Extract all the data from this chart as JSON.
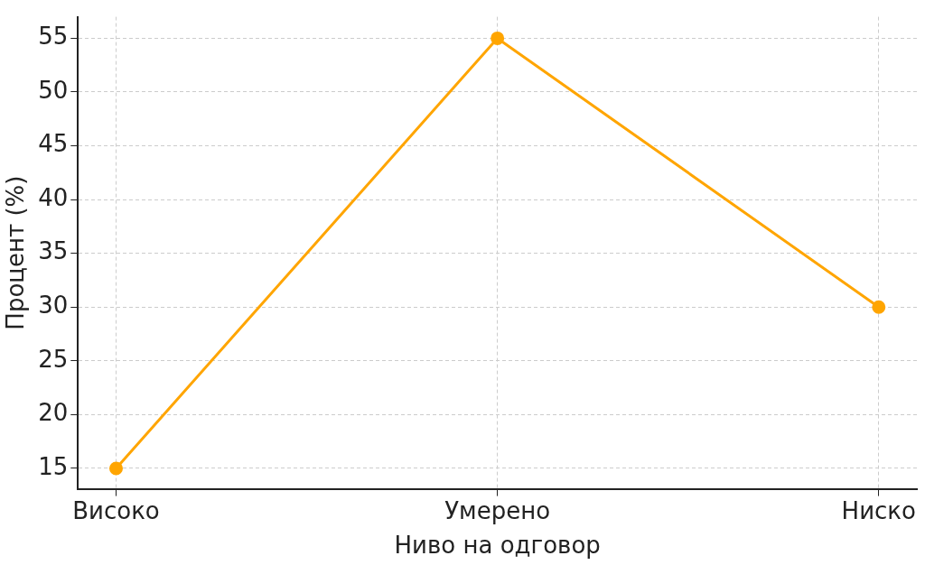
{
  "chart_data": {
    "type": "line",
    "xlabel": "Ниво на одговор",
    "ylabel": "Процент (%)",
    "categories": [
      "Високо",
      "Умерено",
      "Ниско"
    ],
    "series": [
      {
        "color": "#ffa500",
        "values": [
          15,
          55,
          30
        ]
      }
    ],
    "ylim": [
      13.1,
      57
    ],
    "yticks": [
      15,
      20,
      25,
      30,
      35,
      40,
      45,
      50,
      55
    ],
    "grid": true,
    "marker": "circle",
    "line_style": "solid",
    "legend": false
  }
}
